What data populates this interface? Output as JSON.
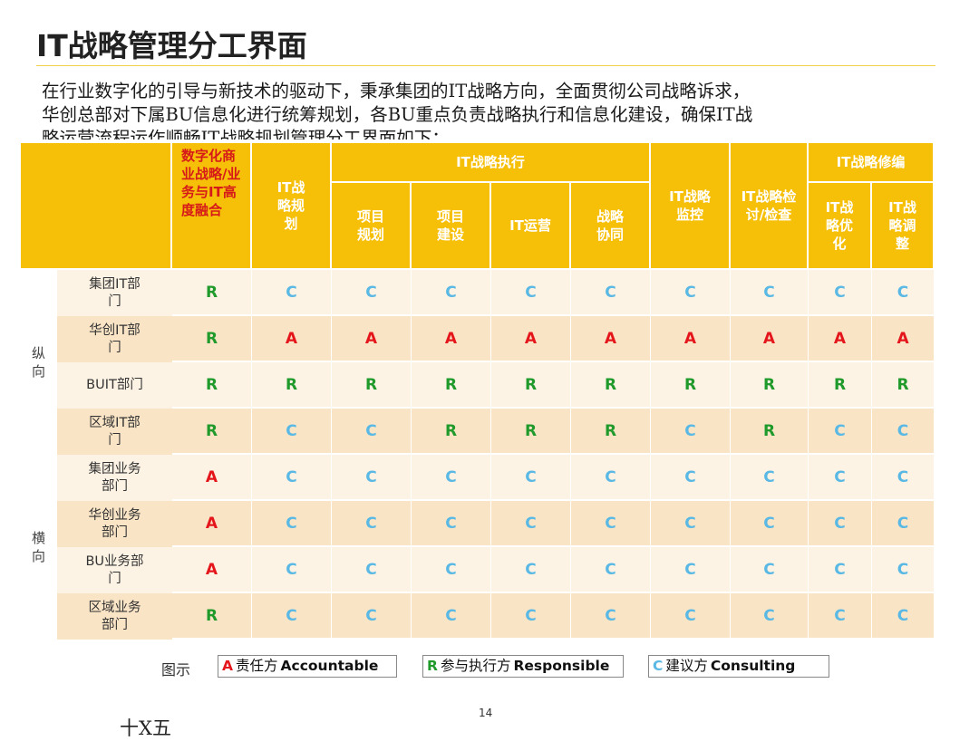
{
  "page": {
    "title": "IT战略管理分工界面",
    "intro_lines": [
      "在行业数字化的引导与新技术的驱动下，秉承集团的IT战略方向，全面贯彻公司战略诉求，",
      "华创总部对下属BU信息化进行统筹规划，各BU重点负责战略执行和信息化建设，确保IT战",
      "略运营流程运作顺畅IT战略规划管理分工界面如下："
    ],
    "page_number": "14",
    "footer_fragment": "十X五"
  },
  "table": {
    "header": {
      "digital": "数字化商业战略/业务与IT高度融合",
      "planning": "IT战略规划",
      "execution": "IT战略执行",
      "project_plan": "项目规划",
      "project_build": "项目建设",
      "it_ops": "IT运营",
      "strategy_sync": "战略协同",
      "monitor": "IT战略监控",
      "review": "IT战略检讨/检查",
      "revision": "IT战略修编",
      "optimize": "IT战略优化",
      "adjust": "IT战略调整"
    },
    "groups": [
      {
        "label": "纵向",
        "rows": [
          {
            "name": "集团IT部门",
            "values": [
              "R",
              "C",
              "C",
              "C",
              "C",
              "C",
              "C",
              "C",
              "C",
              "C"
            ]
          },
          {
            "name": "华创IT部门",
            "values": [
              "R",
              "A",
              "A",
              "A",
              "A",
              "A",
              "A",
              "A",
              "A",
              "A"
            ]
          },
          {
            "name": "BUIT部门",
            "values": [
              "R",
              "R",
              "R",
              "R",
              "R",
              "R",
              "R",
              "R",
              "R",
              "R"
            ]
          },
          {
            "name": "区域IT部门",
            "values": [
              "R",
              "C",
              "C",
              "R",
              "R",
              "R",
              "C",
              "R",
              "C",
              "C"
            ]
          }
        ]
      },
      {
        "label": "横向",
        "rows": [
          {
            "name": "集团业务部门",
            "values": [
              "A",
              "C",
              "C",
              "C",
              "C",
              "C",
              "C",
              "C",
              "C",
              "C"
            ]
          },
          {
            "name": "华创业务部门",
            "values": [
              "A",
              "C",
              "C",
              "C",
              "C",
              "C",
              "C",
              "C",
              "C",
              "C"
            ]
          },
          {
            "name": "BU业务部门",
            "values": [
              "A",
              "C",
              "C",
              "C",
              "C",
              "C",
              "C",
              "C",
              "C",
              "C"
            ]
          },
          {
            "name": "区域业务部门",
            "values": [
              "R",
              "C",
              "C",
              "C",
              "C",
              "C",
              "C",
              "C",
              "C",
              "C"
            ]
          }
        ]
      }
    ]
  },
  "legend": {
    "label": "图示",
    "items": [
      {
        "code": "A",
        "cn": "责任方",
        "en": "Accountable"
      },
      {
        "code": "R",
        "cn": "参与执行方",
        "en": "Responsible"
      },
      {
        "code": "C",
        "cn": "建议方",
        "en": "Consulting"
      }
    ]
  },
  "colors": {
    "header": "#f6bf08",
    "R": "#1f9a2b",
    "A": "#e4161b",
    "C": "#5ab9e4"
  }
}
